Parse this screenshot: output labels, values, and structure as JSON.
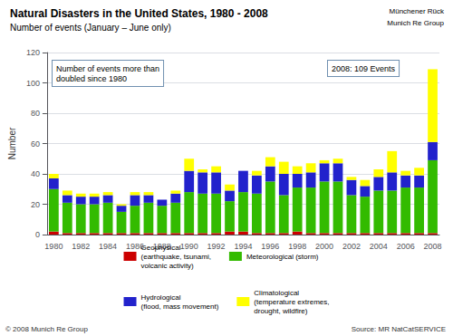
{
  "chart_data": {
    "type": "bar",
    "title": "Natural Disasters in the United States, 1980 - 2008",
    "subtitle": "Number of events (January – June only)",
    "ylabel": "Number",
    "annotations": [
      "Number of events more than\ndoubled since 1980",
      "2008: 109 Events"
    ],
    "footer": [
      "© 2008 Munich Re Group",
      "Source: MR NatCatSERVICE"
    ],
    "logo": [
      "Münchener Rück",
      "Munich Re Group"
    ],
    "categories": [
      "1980",
      null,
      "1982",
      null,
      "1984",
      null,
      "1986",
      null,
      "1988",
      null,
      "1990",
      null,
      "1992",
      null,
      "1994",
      null,
      "1996",
      null,
      "1998",
      null,
      "2000",
      null,
      "2002",
      null,
      "2004",
      null,
      "2006",
      null,
      "2008"
    ],
    "series": [
      {
        "name": "Geophysical\n(earthquake, tsunami,\nvolcanic activity)",
        "color": "#cc0000",
        "values": [
          2,
          1,
          1,
          1,
          1,
          1,
          1,
          1,
          1,
          1,
          1,
          1,
          1,
          2,
          2,
          1,
          1,
          1,
          2,
          1,
          1,
          1,
          1,
          1,
          1,
          1,
          1,
          1,
          1
        ]
      },
      {
        "name": "Meteorological (storm)",
        "color": "#33bb00",
        "values": [
          28,
          20,
          19,
          19,
          20,
          14,
          18,
          20,
          18,
          20,
          27,
          26,
          26,
          20,
          26,
          26,
          34,
          25,
          29,
          30,
          34,
          34,
          25,
          24,
          28,
          28,
          30,
          30,
          48
        ]
      },
      {
        "name": "Hydrological\n(flood, mass movement)",
        "color": "#2222cc",
        "values": [
          7,
          5,
          5,
          5,
          5,
          4,
          7,
          5,
          4,
          6,
          14,
          14,
          14,
          7,
          14,
          12,
          10,
          14,
          9,
          10,
          12,
          12,
          10,
          7,
          9,
          12,
          8,
          8,
          12
        ]
      },
      {
        "name": "Climatological\n(temperature extremes,\ndrought, wildfire)",
        "color": "#ffff00",
        "values": [
          3,
          3,
          2,
          2,
          2,
          1,
          2,
          2,
          0,
          2,
          8,
          2,
          4,
          4,
          0,
          3,
          6,
          8,
          5,
          6,
          2,
          3,
          2,
          4,
          5,
          14,
          3,
          5,
          48
        ]
      }
    ],
    "stacked": true,
    "ylim": [
      0,
      120
    ],
    "yticks": [
      0,
      20,
      40,
      60,
      80,
      100,
      120
    ],
    "grid": true,
    "legend": "bottom"
  }
}
